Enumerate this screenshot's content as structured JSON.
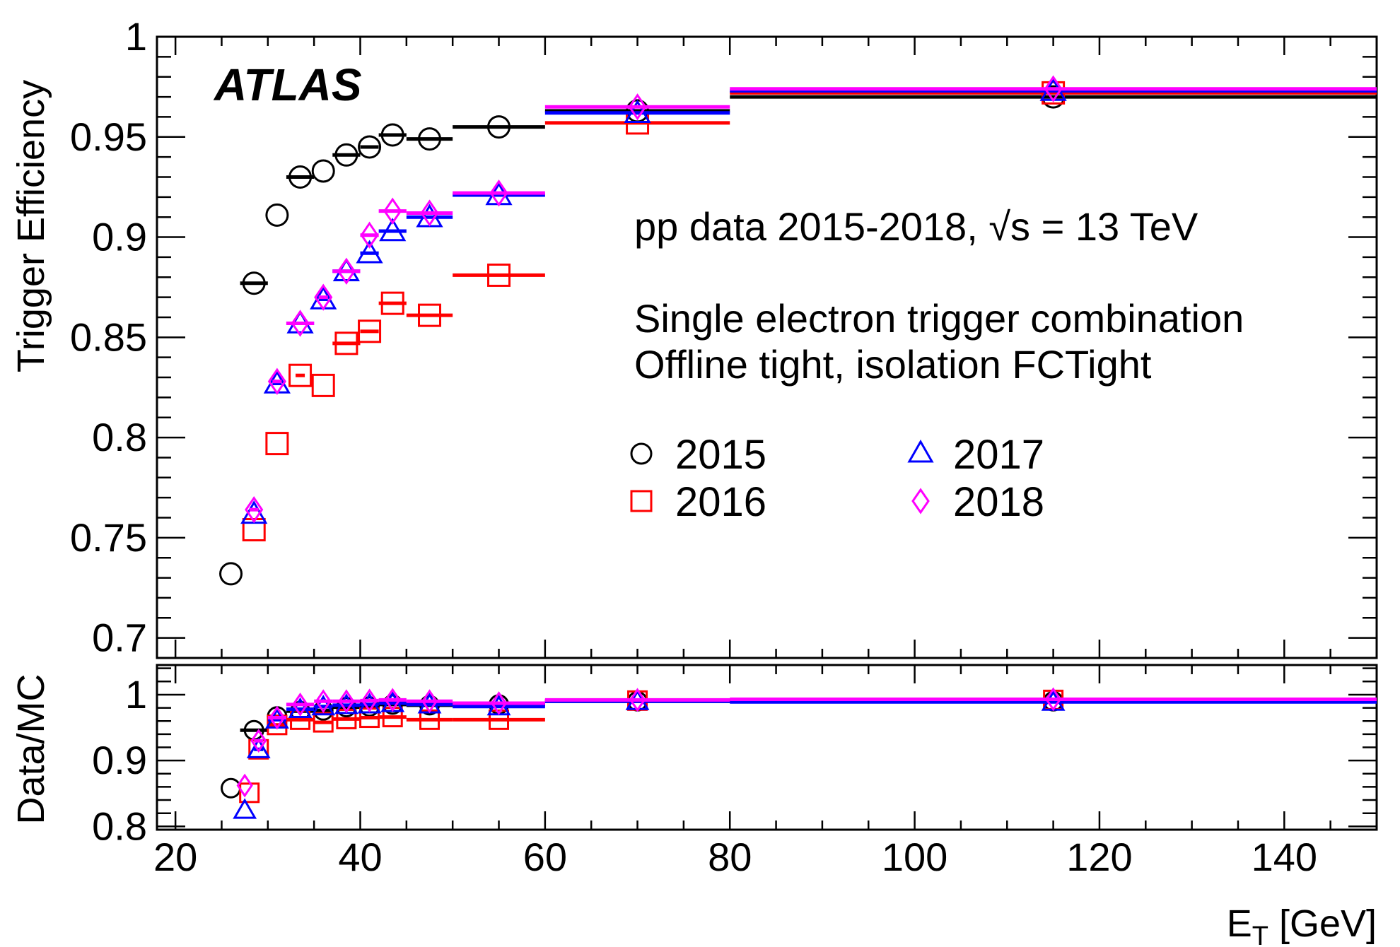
{
  "chart_data": [
    {
      "type": "scatter",
      "panel": "Trigger Efficiency",
      "ylabel": "Trigger Efficiency",
      "xlim": [
        18,
        150
      ],
      "ylim": [
        0.69,
        1.0
      ],
      "yticks": [
        "0.7",
        "0.75",
        "0.8",
        "0.85",
        "0.9",
        "0.95",
        "1"
      ],
      "atlas_label": "ATLAS",
      "annotations": [
        "pp data 2015-2018, √s = 13 TeV",
        "Single electron trigger combination",
        "Offline tight, isolation FCTight"
      ],
      "legend": [
        "2015",
        "2016",
        "2017",
        "2018"
      ],
      "legend_position": "right-middle",
      "series": [
        {
          "name": "2015",
          "marker": "circle",
          "color": "#000000",
          "points": [
            {
              "x": 26,
              "y": 0.732,
              "xlo": 26,
              "xhi": 26
            },
            {
              "x": 28.5,
              "y": 0.877,
              "xlo": 27,
              "xhi": 30
            },
            {
              "x": 31,
              "y": 0.911,
              "xlo": 31,
              "xhi": 31
            },
            {
              "x": 33.5,
              "y": 0.93,
              "xlo": 32,
              "xhi": 35
            },
            {
              "x": 36,
              "y": 0.933,
              "xlo": 36,
              "xhi": 36
            },
            {
              "x": 38.5,
              "y": 0.941,
              "xlo": 37,
              "xhi": 40
            },
            {
              "x": 41,
              "y": 0.945,
              "xlo": 40,
              "xhi": 42
            },
            {
              "x": 43.5,
              "y": 0.951,
              "xlo": 42,
              "xhi": 45
            },
            {
              "x": 47.5,
              "y": 0.949,
              "xlo": 45,
              "xhi": 50
            },
            {
              "x": 55,
              "y": 0.955,
              "xlo": 50,
              "xhi": 60
            },
            {
              "x": 70,
              "y": 0.963,
              "xlo": 60,
              "xhi": 80
            },
            {
              "x": 115,
              "y": 0.97,
              "xlo": 80,
              "xhi": 150
            }
          ]
        },
        {
          "name": "2016",
          "marker": "square",
          "color": "#ff0000",
          "points": [
            {
              "x": 28.5,
              "y": 0.754,
              "xlo": 28.5,
              "xhi": 28.5
            },
            {
              "x": 31,
              "y": 0.797,
              "xlo": 31,
              "xhi": 31
            },
            {
              "x": 33.5,
              "y": 0.831,
              "xlo": 33,
              "xhi": 34
            },
            {
              "x": 36,
              "y": 0.826,
              "xlo": 36,
              "xhi": 36
            },
            {
              "x": 38.5,
              "y": 0.847,
              "xlo": 37,
              "xhi": 40
            },
            {
              "x": 41,
              "y": 0.853,
              "xlo": 40,
              "xhi": 42
            },
            {
              "x": 43.5,
              "y": 0.867,
              "xlo": 42,
              "xhi": 45
            },
            {
              "x": 47.5,
              "y": 0.861,
              "xlo": 45,
              "xhi": 50
            },
            {
              "x": 55,
              "y": 0.881,
              "xlo": 50,
              "xhi": 60
            },
            {
              "x": 70,
              "y": 0.957,
              "xlo": 60,
              "xhi": 80
            },
            {
              "x": 115,
              "y": 0.972,
              "xlo": 80,
              "xhi": 150
            }
          ]
        },
        {
          "name": "2017",
          "marker": "triangle",
          "color": "#0000ff",
          "points": [
            {
              "x": 28.5,
              "y": 0.762,
              "xlo": 28.5,
              "xhi": 28.5
            },
            {
              "x": 31,
              "y": 0.827,
              "xlo": 30.5,
              "xhi": 31.5
            },
            {
              "x": 33.5,
              "y": 0.857,
              "xlo": 32,
              "xhi": 35
            },
            {
              "x": 36,
              "y": 0.869,
              "xlo": 35.5,
              "xhi": 36.5
            },
            {
              "x": 38.5,
              "y": 0.883,
              "xlo": 37,
              "xhi": 40
            },
            {
              "x": 41,
              "y": 0.892,
              "xlo": 40,
              "xhi": 42
            },
            {
              "x": 43.5,
              "y": 0.903,
              "xlo": 42,
              "xhi": 45
            },
            {
              "x": 47.5,
              "y": 0.91,
              "xlo": 45,
              "xhi": 50
            },
            {
              "x": 55,
              "y": 0.921,
              "xlo": 50,
              "xhi": 60
            },
            {
              "x": 70,
              "y": 0.962,
              "xlo": 60,
              "xhi": 80
            },
            {
              "x": 115,
              "y": 0.973,
              "xlo": 80,
              "xhi": 150
            }
          ]
        },
        {
          "name": "2018",
          "marker": "diamond",
          "color": "#ff00ff",
          "points": [
            {
              "x": 28.5,
              "y": 0.764,
              "xlo": 28,
              "xhi": 29
            },
            {
              "x": 31,
              "y": 0.828,
              "xlo": 30.5,
              "xhi": 31.5
            },
            {
              "x": 33.5,
              "y": 0.857,
              "xlo": 32,
              "xhi": 35
            },
            {
              "x": 36,
              "y": 0.87,
              "xlo": 35.5,
              "xhi": 36.5
            },
            {
              "x": 38.5,
              "y": 0.883,
              "xlo": 37,
              "xhi": 40
            },
            {
              "x": 41,
              "y": 0.901,
              "xlo": 40,
              "xhi": 42
            },
            {
              "x": 43.5,
              "y": 0.913,
              "xlo": 42,
              "xhi": 45
            },
            {
              "x": 47.5,
              "y": 0.912,
              "xlo": 45,
              "xhi": 50
            },
            {
              "x": 55,
              "y": 0.922,
              "xlo": 50,
              "xhi": 60
            },
            {
              "x": 70,
              "y": 0.965,
              "xlo": 60,
              "xhi": 80
            },
            {
              "x": 115,
              "y": 0.974,
              "xlo": 80,
              "xhi": 150
            }
          ]
        }
      ]
    },
    {
      "type": "scatter",
      "panel": "Data/MC",
      "ylabel": "Data/MC",
      "xlabel": "E_T [GeV]",
      "xlim": [
        18,
        150
      ],
      "ylim": [
        0.795,
        1.045
      ],
      "yticks": [
        "0.8",
        "0.9",
        "1"
      ],
      "xticks": [
        "20",
        "40",
        "60",
        "80",
        "100",
        "120",
        "140"
      ],
      "series": [
        {
          "name": "2015",
          "marker": "circle",
          "color": "#000000",
          "points": [
            {
              "x": 26,
              "y": 0.858,
              "xlo": 26,
              "xhi": 26
            },
            {
              "x": 28.5,
              "y": 0.946,
              "xlo": 27,
              "xhi": 30
            },
            {
              "x": 31,
              "y": 0.967,
              "xlo": 30,
              "xhi": 32
            },
            {
              "x": 33.5,
              "y": 0.975,
              "xlo": 32,
              "xhi": 35
            },
            {
              "x": 36,
              "y": 0.976,
              "xlo": 35,
              "xhi": 37
            },
            {
              "x": 38.5,
              "y": 0.981,
              "xlo": 37,
              "xhi": 40
            },
            {
              "x": 41,
              "y": 0.982,
              "xlo": 40,
              "xhi": 42
            },
            {
              "x": 43.5,
              "y": 0.985,
              "xlo": 42,
              "xhi": 45
            },
            {
              "x": 47.5,
              "y": 0.984,
              "xlo": 45,
              "xhi": 50
            },
            {
              "x": 55,
              "y": 0.985,
              "xlo": 50,
              "xhi": 60
            },
            {
              "x": 70,
              "y": 0.99,
              "xlo": 60,
              "xhi": 80
            },
            {
              "x": 115,
              "y": 0.99,
              "xlo": 80,
              "xhi": 150
            }
          ]
        },
        {
          "name": "2016",
          "marker": "square",
          "color": "#ff0000",
          "points": [
            {
              "x": 28,
              "y": 0.851,
              "xlo": 28,
              "xhi": 28
            },
            {
              "x": 29,
              "y": 0.917,
              "xlo": 29,
              "xhi": 29
            },
            {
              "x": 31,
              "y": 0.954,
              "xlo": 30,
              "xhi": 32
            },
            {
              "x": 33.5,
              "y": 0.962,
              "xlo": 32,
              "xhi": 35
            },
            {
              "x": 36,
              "y": 0.958,
              "xlo": 35,
              "xhi": 37
            },
            {
              "x": 38.5,
              "y": 0.963,
              "xlo": 37,
              "xhi": 40
            },
            {
              "x": 41,
              "y": 0.965,
              "xlo": 40,
              "xhi": 42
            },
            {
              "x": 43.5,
              "y": 0.966,
              "xlo": 42,
              "xhi": 45
            },
            {
              "x": 47.5,
              "y": 0.962,
              "xlo": 45,
              "xhi": 50
            },
            {
              "x": 55,
              "y": 0.962,
              "xlo": 50,
              "xhi": 60
            },
            {
              "x": 70,
              "y": 0.991,
              "xlo": 60,
              "xhi": 80
            },
            {
              "x": 115,
              "y": 0.992,
              "xlo": 80,
              "xhi": 150
            }
          ]
        },
        {
          "name": "2017",
          "marker": "triangle",
          "color": "#0000ff",
          "points": [
            {
              "x": 27.5,
              "y": 0.825,
              "xlo": 27.5,
              "xhi": 27.5
            },
            {
              "x": 29,
              "y": 0.917,
              "xlo": 28.5,
              "xhi": 29.5
            },
            {
              "x": 31,
              "y": 0.962,
              "xlo": 30,
              "xhi": 32
            },
            {
              "x": 33.5,
              "y": 0.978,
              "xlo": 32,
              "xhi": 35
            },
            {
              "x": 36,
              "y": 0.982,
              "xlo": 35,
              "xhi": 37
            },
            {
              "x": 38.5,
              "y": 0.984,
              "xlo": 37,
              "xhi": 40
            },
            {
              "x": 41,
              "y": 0.985,
              "xlo": 40,
              "xhi": 42
            },
            {
              "x": 43.5,
              "y": 0.987,
              "xlo": 42,
              "xhi": 45
            },
            {
              "x": 47.5,
              "y": 0.985,
              "xlo": 45,
              "xhi": 50
            },
            {
              "x": 55,
              "y": 0.982,
              "xlo": 50,
              "xhi": 60
            },
            {
              "x": 70,
              "y": 0.99,
              "xlo": 60,
              "xhi": 80
            },
            {
              "x": 115,
              "y": 0.989,
              "xlo": 80,
              "xhi": 150
            }
          ]
        },
        {
          "name": "2018",
          "marker": "diamond",
          "color": "#ff00ff",
          "points": [
            {
              "x": 27.5,
              "y": 0.862,
              "xlo": 27.5,
              "xhi": 27.5
            },
            {
              "x": 29,
              "y": 0.93,
              "xlo": 28.5,
              "xhi": 29.5
            },
            {
              "x": 31,
              "y": 0.965,
              "xlo": 30,
              "xhi": 32
            },
            {
              "x": 33.5,
              "y": 0.985,
              "xlo": 32,
              "xhi": 35
            },
            {
              "x": 36,
              "y": 0.99,
              "xlo": 35,
              "xhi": 37
            },
            {
              "x": 38.5,
              "y": 0.99,
              "xlo": 37,
              "xhi": 40
            },
            {
              "x": 41,
              "y": 0.991,
              "xlo": 40,
              "xhi": 42
            },
            {
              "x": 43.5,
              "y": 0.992,
              "xlo": 42,
              "xhi": 45
            },
            {
              "x": 47.5,
              "y": 0.99,
              "xlo": 45,
              "xhi": 50
            },
            {
              "x": 55,
              "y": 0.987,
              "xlo": 50,
              "xhi": 60
            },
            {
              "x": 70,
              "y": 0.992,
              "xlo": 60,
              "xhi": 80
            },
            {
              "x": 115,
              "y": 0.993,
              "xlo": 80,
              "xhi": 150
            }
          ]
        }
      ]
    }
  ]
}
